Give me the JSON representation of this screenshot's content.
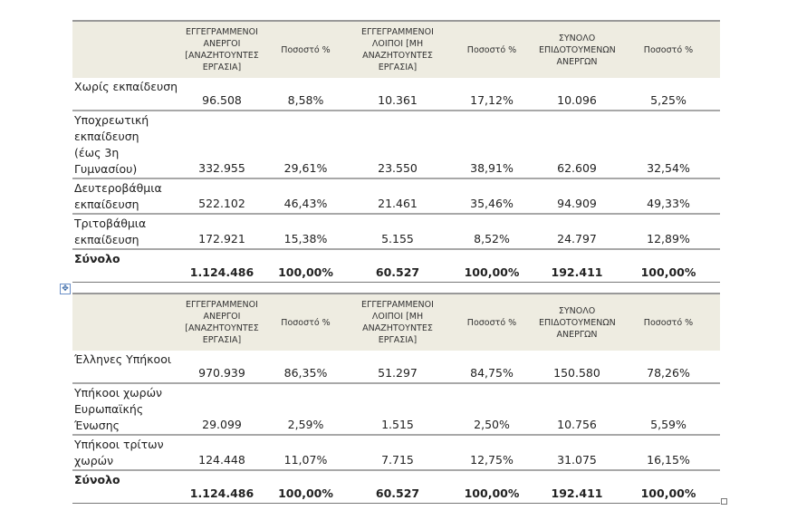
{
  "headers": [
    "",
    "ΕΓΓΕΓΡΑΜΜΕΝΟΙ ΑΝΕΡΓΟΙ [ΑΝΑΖΗΤΟΥΝΤΕΣ ΕΡΓΑΣΙΑ]",
    "Ποσοστό %",
    "ΕΓΓΕΓΡΑΜΜΕΝΟΙ ΛΟΙΠΟΙ [ΜΗ ΑΝΑΖΗΤΟΥΝΤΕΣ ΕΡΓΑΣΙΑ]",
    "Ποσοστό %",
    "ΣΥΝΟΛΟ ΕΠΙΔΟΤΟΥΜΕΝΩΝ ΑΝΕΡΓΩΝ",
    "Ποσοστό %"
  ],
  "table1": [
    {
      "label": "Χωρίς εκπαίδευση",
      "values": [
        "96.508",
        "8,58%",
        "10.361",
        "17,12%",
        "10.096",
        "5,25%"
      ]
    },
    {
      "label": "Υποχρεωτική\nεκπαίδευση\n(έως 3η\nΓυμνασίου)",
      "values": [
        "332.955",
        "29,61%",
        "23.550",
        "38,91%",
        "62.609",
        "32,54%"
      ]
    },
    {
      "label": "Δευτεροβάθμια\nεκπαίδευση",
      "values": [
        "522.102",
        "46,43%",
        "21.461",
        "35,46%",
        "94.909",
        "49,33%"
      ]
    },
    {
      "label": "Τριτοβάθμια\nεκπαίδευση",
      "values": [
        "172.921",
        "15,38%",
        "5.155",
        "8,52%",
        "24.797",
        "12,89%"
      ]
    },
    {
      "label": "Σύνολο",
      "values": [
        "1.124.486",
        "100,00%",
        "60.527",
        "100,00%",
        "192.411",
        "100,00%"
      ],
      "total": true
    }
  ],
  "table2": [
    {
      "label": "Έλληνες Υπήκοοι",
      "values": [
        "970.939",
        "86,35%",
        "51.297",
        "84,75%",
        "150.580",
        "78,26%"
      ]
    },
    {
      "label": "Υπήκοοι χωρών\nΕυρωπαϊκής\nΈνωσης",
      "values": [
        "29.099",
        "2,59%",
        "1.515",
        "2,50%",
        "10.756",
        "5,59%"
      ]
    },
    {
      "label": "Υπήκοοι τρίτων\nχωρών",
      "values": [
        "124.448",
        "11,07%",
        "7.715",
        "12,75%",
        "31.075",
        "16,15%"
      ]
    },
    {
      "label": "Σύνολο",
      "values": [
        "1.124.486",
        "100,00%",
        "60.527",
        "100,00%",
        "192.411",
        "100,00%"
      ],
      "total": true
    }
  ],
  "icons": {
    "move": "table-move-handle-icon",
    "resize": "table-resize-handle-icon"
  }
}
